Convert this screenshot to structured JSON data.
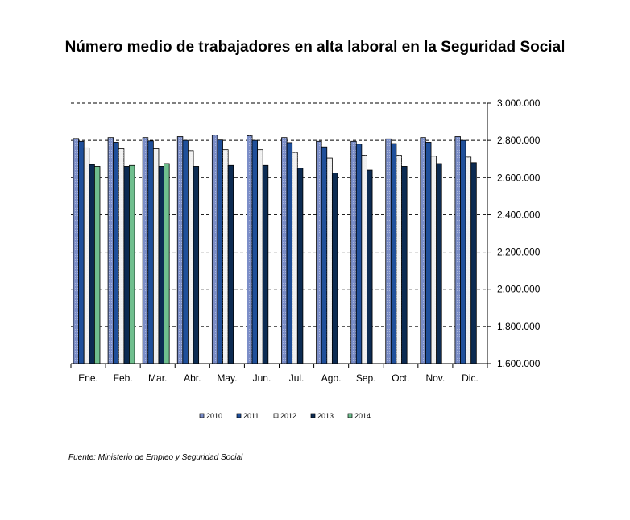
{
  "chart_data": {
    "type": "bar",
    "title": "Número medio de trabajadores en alta laboral en la Seguridad Social",
    "xlabel": "",
    "ylabel": "",
    "categories": [
      "Ene.",
      "Feb.",
      "Mar.",
      "Abr.",
      "May.",
      "Jun.",
      "Jul.",
      "Ago.",
      "Sep.",
      "Oct.",
      "Nov.",
      "Dic."
    ],
    "series": [
      {
        "name": "2010",
        "color": "#7b8ec8",
        "values": [
          2810000,
          2815000,
          2815000,
          2820000,
          2828000,
          2825000,
          2815000,
          2795000,
          2795000,
          2808000,
          2815000,
          2820000
        ]
      },
      {
        "name": "2011",
        "color": "#1f4f9a",
        "values": [
          2795000,
          2790000,
          2797000,
          2800000,
          2802000,
          2800000,
          2788000,
          2765000,
          2780000,
          2783000,
          2790000,
          2800000
        ]
      },
      {
        "name": "2012",
        "color": "#f0f0f0",
        "values": [
          2760000,
          2755000,
          2755000,
          2745000,
          2750000,
          2750000,
          2735000,
          2705000,
          2720000,
          2720000,
          2715000,
          2710000
        ]
      },
      {
        "name": "2013",
        "color": "#0c2b52",
        "values": [
          2670000,
          2660000,
          2660000,
          2660000,
          2665000,
          2665000,
          2650000,
          2625000,
          2640000,
          2660000,
          2675000,
          2680000
        ]
      },
      {
        "name": "2014",
        "color": "#6fbf8e",
        "values": [
          2660000,
          2665000,
          2675000,
          null,
          null,
          null,
          null,
          null,
          null,
          null,
          null,
          null
        ]
      }
    ],
    "yticks": [
      "1.600.000",
      "1.800.000",
      "2.000.000",
      "2.200.000",
      "2.400.000",
      "2.600.000",
      "2.800.000",
      "3.000.000"
    ],
    "ylim": [
      1600000,
      3000000
    ],
    "ytick_step": 200000,
    "grid": "dashed horizontal",
    "legend_position": "bottom"
  },
  "source": "Fuente: Ministerio de Empleo y Seguridad Social"
}
